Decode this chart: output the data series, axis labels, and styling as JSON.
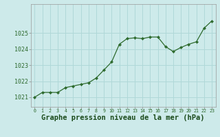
{
  "x": [
    0,
    1,
    2,
    3,
    4,
    5,
    6,
    7,
    8,
    9,
    10,
    11,
    12,
    13,
    14,
    15,
    16,
    17,
    18,
    19,
    20,
    21,
    22,
    23
  ],
  "y": [
    1021.0,
    1021.3,
    1021.3,
    1021.3,
    1021.6,
    1021.7,
    1021.8,
    1021.9,
    1022.2,
    1022.7,
    1023.2,
    1024.3,
    1024.65,
    1024.7,
    1024.65,
    1024.75,
    1024.75,
    1024.15,
    1023.85,
    1024.1,
    1024.3,
    1024.45,
    1025.3,
    1025.75
  ],
  "line_color": "#2d6a2d",
  "marker": "D",
  "marker_size": 2.2,
  "line_width": 0.9,
  "bg_color": "#cdeaea",
  "grid_color": "#b0d8d8",
  "xlabel": "Graphe pression niveau de la mer (hPa)",
  "xlabel_color": "#1a4a1a",
  "xlabel_fontsize": 7.5,
  "tick_color": "#2d6a2d",
  "tick_fontsize": 6,
  "ylim": [
    1020.4,
    1026.8
  ],
  "yticks": [
    1021,
    1022,
    1023,
    1024,
    1025
  ],
  "xlim": [
    -0.5,
    23.5
  ],
  "xticks": [
    0,
    1,
    2,
    3,
    4,
    5,
    6,
    7,
    8,
    9,
    10,
    11,
    12,
    13,
    14,
    15,
    16,
    17,
    18,
    19,
    20,
    21,
    22,
    23
  ]
}
